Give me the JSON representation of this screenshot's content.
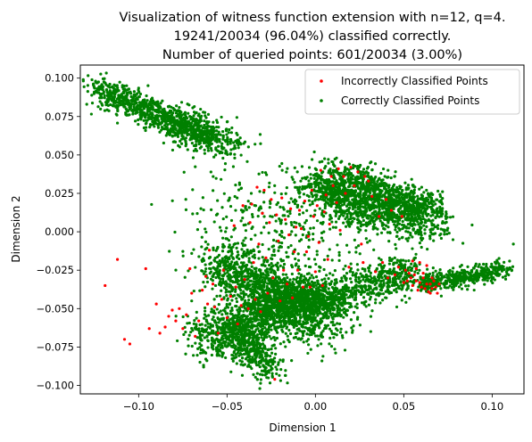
{
  "chart_data": {
    "type": "scatter",
    "title_lines": [
      "Visualization of witness function extension with n=12, q=4.",
      "19241/20034 (96.04%) classified correctly.",
      "Number of queried points: 601/20034 (3.00%)"
    ],
    "xlabel": "Dimension 1",
    "ylabel": "Dimension 2",
    "xlim": [
      -0.133,
      0.118
    ],
    "ylim": [
      -0.1055,
      0.1085
    ],
    "xticks": [
      -0.1,
      -0.05,
      0.0,
      0.05,
      0.1
    ],
    "xtick_labels": [
      "−0.10",
      "−0.05",
      "0.00",
      "0.05",
      "0.10"
    ],
    "yticks": [
      0.1,
      0.075,
      0.05,
      0.025,
      0.0,
      -0.025,
      -0.05,
      -0.075,
      -0.1
    ],
    "ytick_labels": [
      "0.100",
      "0.075",
      "0.050",
      "0.025",
      "0.000",
      "−0.025",
      "−0.050",
      "−0.075",
      "−0.100"
    ],
    "grid": false,
    "legend_position": "upper right",
    "series": [
      {
        "name": "Incorrectly Classified Points",
        "color": "#ff0000",
        "points_description_note": null,
        "points": [
          [
            -0.119,
            -0.035
          ],
          [
            -0.112,
            -0.018
          ],
          [
            -0.108,
            -0.07
          ],
          [
            -0.105,
            -0.073
          ],
          [
            -0.096,
            -0.024
          ],
          [
            -0.094,
            -0.063
          ],
          [
            -0.09,
            -0.047
          ],
          [
            -0.088,
            -0.066
          ],
          [
            -0.085,
            -0.062
          ],
          [
            -0.083,
            -0.055
          ],
          [
            -0.081,
            -0.051
          ],
          [
            -0.079,
            -0.058
          ],
          [
            -0.077,
            -0.05
          ],
          [
            -0.075,
            -0.063
          ],
          [
            -0.073,
            -0.054
          ],
          [
            -0.071,
            -0.024
          ],
          [
            -0.07,
            -0.04
          ],
          [
            -0.068,
            -0.068
          ],
          [
            -0.066,
            -0.058
          ],
          [
            -0.064,
            -0.038
          ],
          [
            -0.062,
            -0.029
          ],
          [
            -0.061,
            -0.047
          ],
          [
            -0.06,
            -0.012
          ],
          [
            -0.058,
            -0.034
          ],
          [
            -0.057,
            -0.049
          ],
          [
            -0.055,
            -0.066
          ],
          [
            -0.053,
            -0.044
          ],
          [
            -0.052,
            -0.025
          ],
          [
            -0.05,
            -0.056
          ],
          [
            -0.048,
            -0.042
          ],
          [
            -0.046,
            0.004
          ],
          [
            -0.045,
            -0.036
          ],
          [
            -0.044,
            -0.06
          ],
          [
            -0.042,
            -0.048
          ],
          [
            -0.041,
            0.017
          ],
          [
            -0.04,
            -0.031
          ],
          [
            -0.038,
            -0.05
          ],
          [
            -0.037,
            0.006
          ],
          [
            -0.036,
            0.018
          ],
          [
            -0.035,
            -0.02
          ],
          [
            -0.034,
            -0.044
          ],
          [
            -0.033,
            0.029
          ],
          [
            -0.032,
            -0.008
          ],
          [
            -0.031,
            -0.052
          ],
          [
            -0.03,
            0.012
          ],
          [
            -0.029,
            0.027
          ],
          [
            -0.028,
            -0.017
          ],
          [
            -0.027,
            -0.04
          ],
          [
            -0.026,
            0.006
          ],
          [
            -0.025,
            0.021
          ],
          [
            -0.024,
            -0.03
          ],
          [
            -0.023,
            -0.096
          ],
          [
            -0.022,
            0.011
          ],
          [
            -0.021,
            -0.006
          ],
          [
            -0.02,
            -0.045
          ],
          [
            -0.019,
            0.022
          ],
          [
            -0.018,
            -0.025
          ],
          [
            -0.017,
            0.008
          ],
          [
            -0.016,
            -0.034
          ],
          [
            -0.015,
            -0.002
          ],
          [
            -0.014,
            0.015
          ],
          [
            -0.013,
            -0.043
          ],
          [
            -0.012,
            -0.013
          ],
          [
            -0.011,
            0.003
          ],
          [
            -0.01,
            -0.025
          ],
          [
            -0.009,
            0.014
          ],
          [
            -0.008,
            0.002
          ],
          [
            -0.007,
            -0.036
          ],
          [
            -0.006,
            0.02
          ],
          [
            -0.005,
            -0.013
          ],
          [
            -0.004,
            -0.003
          ],
          [
            -0.003,
            -0.036
          ],
          [
            -0.002,
            0.027
          ],
          [
            -0.001,
            0.01
          ],
          [
            0.0,
            -0.026
          ],
          [
            0.001,
            0.017
          ],
          [
            0.002,
            -0.007
          ],
          [
            0.003,
            0.04
          ],
          [
            0.004,
            -0.035
          ],
          [
            0.005,
            0.013
          ],
          [
            0.006,
            0.024
          ],
          [
            0.007,
            -0.018
          ],
          [
            0.008,
            0.005
          ],
          [
            0.009,
            0.036
          ],
          [
            0.01,
            0.03
          ],
          [
            0.012,
            0.019
          ],
          [
            0.013,
            0.041
          ],
          [
            0.014,
            0.001
          ],
          [
            0.016,
            0.036
          ],
          [
            0.017,
            0.025
          ],
          [
            0.019,
            -0.023
          ],
          [
            0.02,
            0.042
          ],
          [
            0.022,
            0.03
          ],
          [
            0.024,
            0.039
          ],
          [
            0.026,
            -0.008
          ],
          [
            0.027,
            -0.02
          ],
          [
            0.028,
            0.036
          ],
          [
            0.03,
            0.033
          ],
          [
            0.032,
            0.023
          ],
          [
            0.034,
            -0.026
          ],
          [
            0.036,
            0.01
          ],
          [
            0.038,
            -0.02
          ],
          [
            0.04,
            0.021
          ],
          [
            0.041,
            -0.03
          ],
          [
            0.043,
            0.014
          ],
          [
            0.045,
            -0.028
          ],
          [
            0.047,
            -0.023
          ],
          [
            0.049,
            0.01
          ],
          [
            0.051,
            -0.025
          ],
          [
            0.052,
            -0.032
          ],
          [
            0.054,
            -0.03
          ],
          [
            0.055,
            -0.035
          ],
          [
            0.056,
            -0.028
          ],
          [
            0.057,
            -0.032
          ],
          [
            0.058,
            -0.038
          ],
          [
            0.059,
            -0.033
          ],
          [
            0.06,
            -0.036
          ],
          [
            0.061,
            -0.03
          ],
          [
            0.062,
            -0.037
          ],
          [
            0.063,
            -0.034
          ],
          [
            0.064,
            -0.039
          ],
          [
            0.065,
            -0.034
          ],
          [
            0.066,
            -0.037
          ],
          [
            0.067,
            -0.032
          ],
          [
            0.068,
            -0.036
          ],
          [
            0.069,
            -0.04
          ],
          [
            0.07,
            -0.034
          ],
          [
            0.059,
            -0.02
          ],
          [
            0.063,
            -0.022
          ],
          [
            0.055,
            -0.019
          ],
          [
            0.061,
            -0.027
          ],
          [
            0.057,
            -0.024
          ],
          [
            0.066,
            -0.03
          ],
          [
            0.053,
            -0.027
          ],
          [
            0.05,
            -0.033
          ],
          [
            0.065,
            -0.04
          ]
        ]
      },
      {
        "name": "Correctly Classified Points",
        "color": "#008000",
        "clusters": [
          {
            "from": [
              -0.124,
              0.094
            ],
            "to": [
              -0.06,
              0.06
            ],
            "spread": 0.0045,
            "count": 900
          },
          {
            "from": [
              -0.08,
              0.075
            ],
            "to": [
              -0.045,
              0.055
            ],
            "spread": 0.005,
            "count": 250
          },
          {
            "from": [
              0.0,
              0.03
            ],
            "to": [
              0.065,
              0.008
            ],
            "spread": 0.008,
            "count": 1400
          },
          {
            "from": [
              0.01,
              0.04
            ],
            "to": [
              0.07,
              0.015
            ],
            "spread": 0.004,
            "count": 300
          },
          {
            "from": [
              -0.055,
              -0.02
            ],
            "to": [
              0.01,
              -0.06
            ],
            "spread": 0.009,
            "count": 1200
          },
          {
            "from": [
              -0.06,
              -0.07
            ],
            "to": [
              0.0,
              -0.04
            ],
            "spread": 0.009,
            "count": 1200
          },
          {
            "from": [
              -0.045,
              -0.065
            ],
            "to": [
              -0.025,
              -0.092
            ],
            "spread": 0.005,
            "count": 350
          },
          {
            "from": [
              -0.01,
              -0.05
            ],
            "to": [
              0.055,
              -0.025
            ],
            "spread": 0.006,
            "count": 700
          },
          {
            "from": [
              0.06,
              -0.035
            ],
            "to": [
              0.108,
              -0.024
            ],
            "spread": 0.003,
            "count": 450
          },
          {
            "from": [
              -0.05,
              0.01
            ],
            "to": [
              0.02,
              -0.01
            ],
            "spread": 0.02,
            "count": 350
          }
        ],
        "extra_points": [
          [
            0.112,
            -0.008
          ],
          [
            -0.062,
            -0.079
          ],
          [
            -0.07,
            -0.045
          ],
          [
            0.08,
            -0.03
          ]
        ]
      }
    ]
  }
}
